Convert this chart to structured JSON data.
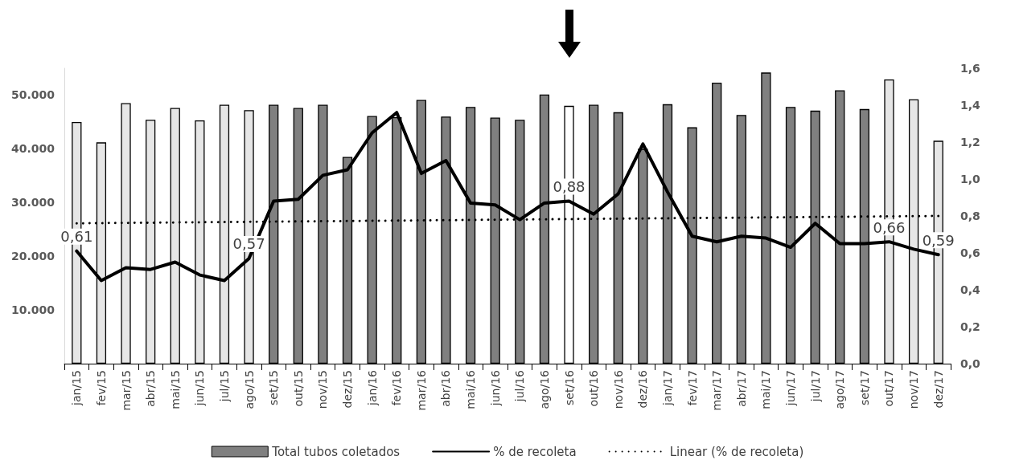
{
  "chart_data": {
    "type": "bar",
    "categories": [
      "jan/15",
      "fev/15",
      "mar/15",
      "abr/15",
      "mai/15",
      "jun/15",
      "jul/15",
      "ago/15",
      "set/15",
      "out/15",
      "nov/15",
      "dez/15",
      "jan/16",
      "fev/16",
      "mar/16",
      "abr/16",
      "mai/16",
      "jun/16",
      "jul/16",
      "ago/16",
      "set/16",
      "out/16",
      "nov/16",
      "dez/16",
      "jan/17",
      "fev/17",
      "mar/17",
      "abr/17",
      "mai/17",
      "jun/17",
      "jul/17",
      "ago/17",
      "set/17",
      "out/17",
      "nov/17",
      "dez/17"
    ],
    "series": [
      {
        "name": "Total tubos coletados",
        "colors": [
          "#e6e6e6",
          "#e6e6e6",
          "#e6e6e6",
          "#e6e6e6",
          "#e6e6e6",
          "#e6e6e6",
          "#e6e6e6",
          "#e6e6e6",
          "#808080",
          "#808080",
          "#808080",
          "#808080",
          "#808080",
          "#808080",
          "#808080",
          "#808080",
          "#808080",
          "#808080",
          "#808080",
          "#808080",
          "#ffffff",
          "#808080",
          "#808080",
          "#808080",
          "#808080",
          "#808080",
          "#808080",
          "#808080",
          "#808080",
          "#808080",
          "#808080",
          "#808080",
          "#808080",
          "#e6e6e6",
          "#e6e6e6",
          "#e6e6e6"
        ],
        "values": [
          45000,
          41200,
          48500,
          45400,
          47600,
          45300,
          48200,
          47200,
          48200,
          47600,
          48200,
          38500,
          46100,
          45900,
          49100,
          46000,
          47800,
          45800,
          45400,
          50100,
          48000,
          48200,
          46800,
          40000,
          48300,
          44000,
          52300,
          46300,
          54200,
          47800,
          47100,
          50900,
          47400,
          52900,
          49200,
          41500
        ]
      },
      {
        "name": "% de recoleta",
        "type": "line",
        "axis": "y2",
        "color": "#000000",
        "line_style": "solid",
        "values": [
          0.61,
          0.45,
          0.52,
          0.51,
          0.55,
          0.48,
          0.45,
          0.57,
          0.88,
          0.89,
          1.02,
          1.05,
          1.25,
          1.36,
          1.03,
          1.1,
          0.87,
          0.86,
          0.78,
          0.87,
          0.88,
          0.81,
          0.92,
          1.19,
          0.93,
          0.69,
          0.66,
          0.69,
          0.68,
          0.63,
          0.76,
          0.65,
          0.65,
          0.66,
          0.62,
          0.59
        ],
        "value_labels": [
          "0,61",
          null,
          null,
          null,
          null,
          null,
          null,
          "0,57",
          null,
          null,
          null,
          null,
          null,
          null,
          null,
          null,
          null,
          null,
          null,
          null,
          "0,88",
          null,
          null,
          null,
          null,
          null,
          null,
          null,
          null,
          null,
          null,
          null,
          null,
          "0,66",
          null,
          "0,59"
        ]
      },
      {
        "name": "Linear (% de recoleta)",
        "type": "line",
        "axis": "y2",
        "color": "#000000",
        "line_style": "dotted",
        "x": [
          "jan/15",
          "dez/17"
        ],
        "values": [
          0.76,
          0.8
        ]
      }
    ],
    "ylim": [
      0,
      55000
    ],
    "yticks": [
      {
        "value": 10000,
        "label": "10.000"
      },
      {
        "value": 20000,
        "label": "20.000"
      },
      {
        "value": 30000,
        "label": "30.000"
      },
      {
        "value": 40000,
        "label": "40.000"
      },
      {
        "value": 50000,
        "label": "50.000"
      }
    ],
    "y2lim": [
      0,
      1.6
    ],
    "y2ticks": [
      {
        "value": 0,
        "label": "0,0"
      },
      {
        "value": 0.2,
        "label": "0,2"
      },
      {
        "value": 0.4,
        "label": "0,4"
      },
      {
        "value": 0.6,
        "label": "0,6"
      },
      {
        "value": 0.8,
        "label": "0,8"
      },
      {
        "value": 1.0,
        "label": "1,0"
      },
      {
        "value": 1.2,
        "label": "1,2"
      },
      {
        "value": 1.4,
        "label": "1,4"
      },
      {
        "value": 1.6,
        "label": "1,6"
      }
    ],
    "grid": false,
    "legend": "bottom",
    "marker": "none"
  }
}
